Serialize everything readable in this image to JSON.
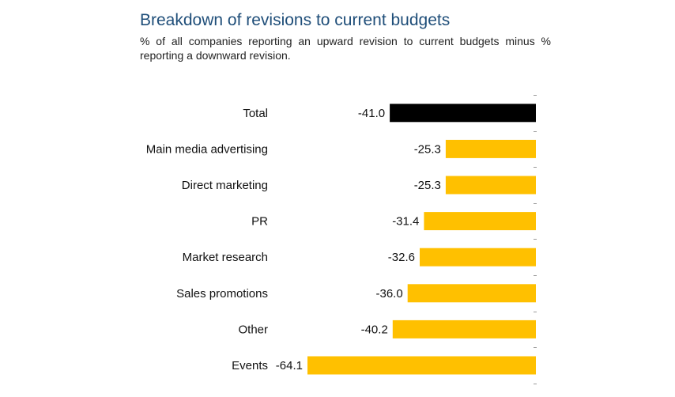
{
  "title": "Breakdown of revisions to current budgets",
  "subtitle": "% of all companies reporting an upward revision to current budgets minus % reporting a downward revision.",
  "chart_data": {
    "type": "bar",
    "orientation": "horizontal",
    "title": "Breakdown of revisions to current budgets",
    "subtitle": "% of all companies reporting an upward revision to current budgets minus % reporting a downward revision.",
    "categories": [
      "Total",
      "Main media advertising",
      "Direct marketing",
      "PR",
      "Market research",
      "Sales promotions",
      "Other",
      "Events"
    ],
    "values": [
      -41.0,
      -25.3,
      -25.3,
      -31.4,
      -32.6,
      -36.0,
      -40.2,
      -64.1
    ],
    "value_labels": [
      "-41.0",
      "-25.3",
      "-25.3",
      "-31.4",
      "-32.6",
      "-36.0",
      "-40.2",
      "-64.1"
    ],
    "colors": [
      "#000000",
      "#ffc000",
      "#ffc000",
      "#ffc000",
      "#ffc000",
      "#ffc000",
      "#ffc000",
      "#ffc000"
    ],
    "xlim": [
      -64.1,
      0
    ],
    "grid": false,
    "legend": "none"
  }
}
